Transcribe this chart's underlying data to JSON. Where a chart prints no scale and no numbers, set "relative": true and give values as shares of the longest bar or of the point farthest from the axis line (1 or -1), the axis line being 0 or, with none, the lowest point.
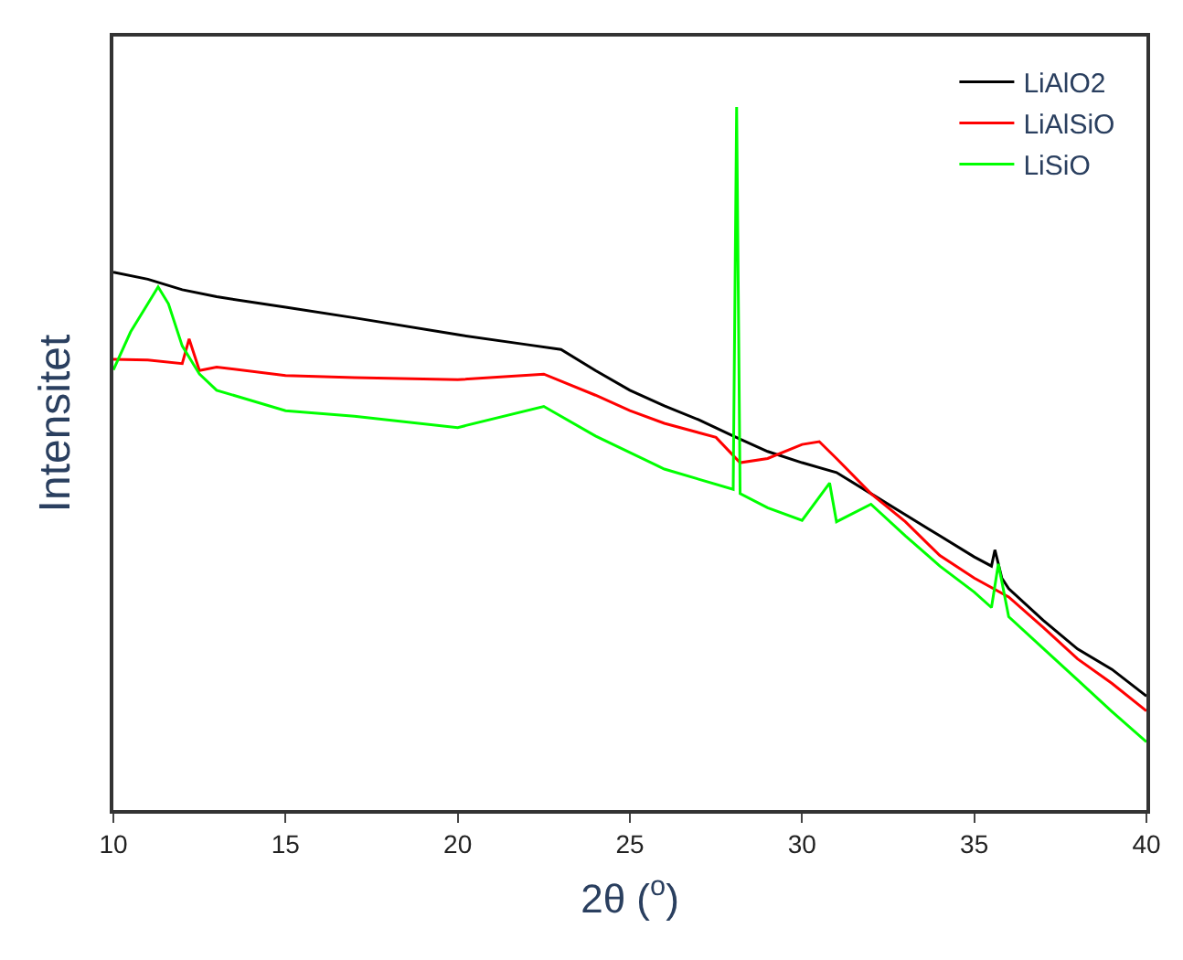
{
  "chart_data": {
    "type": "line",
    "xlabel": "2θ ($^{o}$)",
    "ylabel": "Intensitet",
    "relative": true,
    "xlim": [
      10,
      40
    ],
    "xticks": [
      10,
      15,
      20,
      25,
      30,
      35,
      40
    ],
    "legend": "top right",
    "series": [
      {
        "name": "LiAlO2",
        "color": "#000000",
        "x": [
          10,
          11,
          12,
          13,
          15,
          17,
          20,
          22,
          23,
          24,
          25,
          26,
          27,
          28,
          29,
          30,
          31,
          32,
          33,
          34,
          35,
          35.5,
          35.6,
          35.8,
          36,
          37,
          38,
          39,
          40
        ],
        "values": [
          0.765,
          0.755,
          0.74,
          0.73,
          0.715,
          0.7,
          0.676,
          0.662,
          0.655,
          0.625,
          0.597,
          0.575,
          0.555,
          0.532,
          0.51,
          0.494,
          0.48,
          0.45,
          0.42,
          0.39,
          0.36,
          0.347,
          0.37,
          0.33,
          0.315,
          0.27,
          0.229,
          0.2,
          0.162
        ]
      },
      {
        "name": "LiAlSiO",
        "color": "#ff0000",
        "x": [
          10,
          11,
          12,
          12.2,
          12.5,
          13,
          15,
          17,
          20,
          22.5,
          24,
          25,
          26,
          27.5,
          28.2,
          29,
          30,
          30.5,
          31,
          32,
          33,
          34,
          35,
          36,
          37,
          38,
          39,
          40
        ],
        "values": [
          0.641,
          0.64,
          0.635,
          0.67,
          0.625,
          0.63,
          0.618,
          0.615,
          0.612,
          0.62,
          0.59,
          0.568,
          0.55,
          0.53,
          0.494,
          0.5,
          0.52,
          0.524,
          0.5,
          0.45,
          0.41,
          0.362,
          0.33,
          0.303,
          0.26,
          0.215,
          0.18,
          0.141
        ]
      },
      {
        "name": "LiSiO",
        "color": "#00ff00",
        "x": [
          10,
          10.5,
          11,
          11.3,
          11.6,
          12,
          12.5,
          13,
          15,
          17,
          20,
          22.5,
          24,
          26,
          28,
          28.1,
          28.2,
          29,
          30,
          30.8,
          31,
          32,
          33,
          34,
          35,
          35.5,
          35.7,
          36,
          37,
          38,
          39,
          40
        ],
        "values": [
          0.626,
          0.68,
          0.72,
          0.744,
          0.72,
          0.66,
          0.62,
          0.597,
          0.568,
          0.56,
          0.544,
          0.574,
          0.532,
          0.485,
          0.456,
          1.0,
          0.45,
          0.43,
          0.412,
          0.465,
          0.41,
          0.435,
          0.39,
          0.347,
          0.31,
          0.288,
          0.35,
          0.275,
          0.23,
          0.185,
          0.14,
          0.097
        ]
      }
    ]
  }
}
